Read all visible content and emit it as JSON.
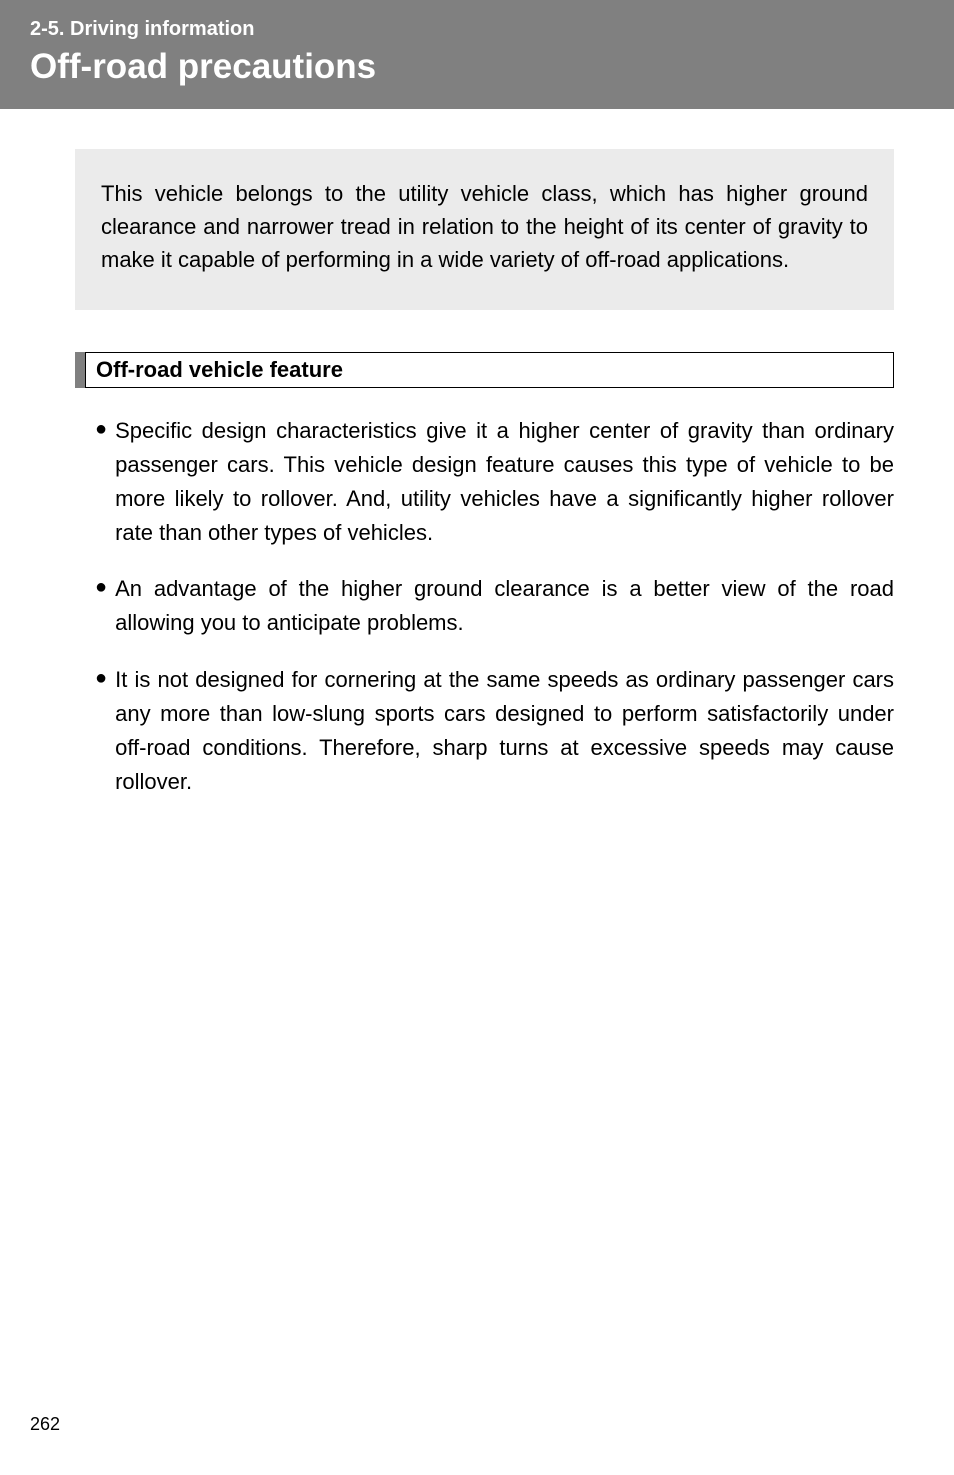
{
  "header": {
    "section_label": "2-5. Driving information",
    "title": "Off-road precautions"
  },
  "intro": {
    "text": "This vehicle belongs to the utility vehicle class, which has higher ground clearance and narrower tread in relation to the height of its center of gravity to make it capable of performing in a wide variety of off-road applications."
  },
  "subheading": {
    "text": "Off-road vehicle feature"
  },
  "bullets": [
    {
      "text": "Specific design characteristics give it a higher center of gravity than ordinary passenger cars. This vehicle design feature causes this type of vehicle to be more likely to rollover. And, utility vehicles have a significantly higher rollover rate than other types of vehicles."
    },
    {
      "text": "An advantage of the higher ground clearance is a better view of the road allowing you to anticipate problems."
    },
    {
      "text": "It is not designed for cornering at the same speeds as ordinary passenger cars any more than low-slung sports cars designed to perform satisfactorily under off-road conditions. Therefore, sharp turns at excessive speeds may cause rollover."
    }
  ],
  "page_number": "262",
  "colors": {
    "header_bg": "#808080",
    "header_text": "#ffffff",
    "intro_bg": "#ebebeb",
    "body_text": "#000000",
    "page_bg": "#ffffff"
  }
}
